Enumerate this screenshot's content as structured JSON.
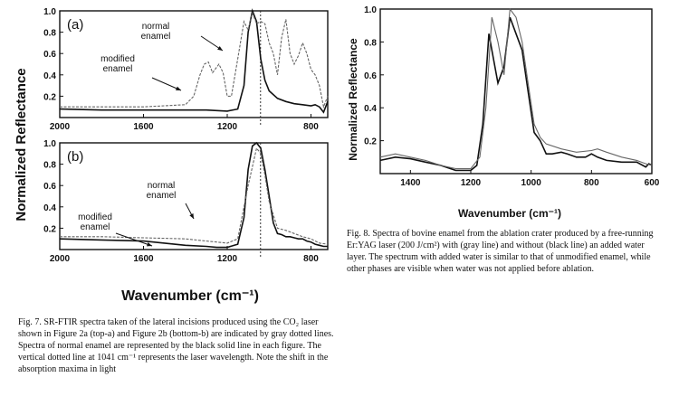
{
  "chart_data": [
    {
      "type": "line",
      "panel_label": "(a)",
      "xlabel": "Wavenumber (cm⁻¹)",
      "ylabel": "Normalized Reflectance",
      "x_ticks": [
        "2000",
        "1600",
        "1200",
        "800"
      ],
      "y_ticks": [
        "0.2",
        "0.4",
        "0.6",
        "0.8",
        "1.0"
      ],
      "xlim": [
        2000,
        720
      ],
      "ylim": [
        0,
        1.0
      ],
      "annotations": [
        {
          "text": [
            "normal",
            "enamel"
          ]
        },
        {
          "text": [
            "modified",
            "enamel"
          ]
        }
      ],
      "vertical_line_x": 1041,
      "series": [
        {
          "style": "black-solid",
          "x": [
            2000,
            1800,
            1600,
            1400,
            1300,
            1200,
            1150,
            1120,
            1100,
            1080,
            1060,
            1040,
            1020,
            1000,
            960,
            920,
            880,
            840,
            800,
            780,
            760,
            740,
            720
          ],
          "y": [
            0.08,
            0.07,
            0.07,
            0.07,
            0.07,
            0.06,
            0.08,
            0.3,
            0.8,
            1.0,
            0.9,
            0.55,
            0.35,
            0.25,
            0.18,
            0.15,
            0.13,
            0.12,
            0.11,
            0.12,
            0.1,
            0.05,
            0.15
          ]
        },
        {
          "style": "gray-dotted",
          "x": [
            2000,
            1800,
            1600,
            1400,
            1360,
            1330,
            1310,
            1290,
            1270,
            1240,
            1220,
            1200,
            1180,
            1150,
            1120,
            1100,
            1080,
            1060,
            1040,
            1020,
            1000,
            980,
            960,
            940,
            920,
            900,
            880,
            860,
            840,
            820,
            800,
            780,
            760,
            740,
            720
          ],
          "y": [
            0.1,
            0.1,
            0.1,
            0.12,
            0.2,
            0.4,
            0.5,
            0.52,
            0.42,
            0.5,
            0.42,
            0.2,
            0.2,
            0.55,
            0.9,
            0.82,
            0.98,
            0.88,
            0.9,
            0.88,
            0.7,
            0.6,
            0.4,
            0.75,
            0.92,
            0.6,
            0.5,
            0.58,
            0.7,
            0.6,
            0.45,
            0.4,
            0.3,
            0.1,
            0.2
          ]
        }
      ]
    },
    {
      "type": "line",
      "panel_label": "(b)",
      "xlabel": "Wavenumber (cm⁻¹)",
      "ylabel": "Normalized Reflectance",
      "x_ticks": [
        "2000",
        "1600",
        "1200",
        "800"
      ],
      "y_ticks": [
        "0.2",
        "0.4",
        "0.6",
        "0.8",
        "1.0"
      ],
      "xlim": [
        2000,
        720
      ],
      "ylim": [
        0,
        1.0
      ],
      "annotations": [
        {
          "text": [
            "normal",
            "enamel"
          ]
        },
        {
          "text": [
            "modified",
            "enamel"
          ]
        }
      ],
      "vertical_line_x": 1041,
      "series": [
        {
          "style": "black-solid",
          "x": [
            2000,
            1800,
            1600,
            1500,
            1400,
            1300,
            1250,
            1200,
            1150,
            1120,
            1100,
            1080,
            1060,
            1040,
            1020,
            1000,
            980,
            960,
            940,
            920,
            900,
            880,
            860,
            840,
            820,
            800,
            780,
            760,
            740,
            720
          ],
          "y": [
            0.1,
            0.09,
            0.08,
            0.06,
            0.04,
            0.03,
            0.02,
            0.02,
            0.05,
            0.3,
            0.75,
            0.97,
            1.0,
            0.95,
            0.75,
            0.5,
            0.25,
            0.15,
            0.14,
            0.12,
            0.12,
            0.11,
            0.1,
            0.1,
            0.08,
            0.07,
            0.05,
            0.04,
            0.03,
            0.03
          ]
        },
        {
          "style": "gray-dotted",
          "x": [
            2000,
            1800,
            1600,
            1400,
            1300,
            1250,
            1200,
            1150,
            1100,
            1060,
            1040,
            1020,
            1000,
            960,
            920,
            880,
            840,
            800,
            760,
            720
          ],
          "y": [
            0.12,
            0.12,
            0.11,
            0.1,
            0.08,
            0.07,
            0.06,
            0.1,
            0.6,
            0.95,
            0.9,
            0.7,
            0.45,
            0.2,
            0.18,
            0.15,
            0.12,
            0.1,
            0.06,
            0.05
          ]
        }
      ]
    },
    {
      "type": "line",
      "xlabel": "Wavenumber (cm⁻¹)",
      "ylabel": "Normalized Reflectance",
      "x_ticks": [
        "1400",
        "1200",
        "1000",
        "800",
        "600"
      ],
      "y_ticks": [
        "0.2",
        "0.4",
        "0.6",
        "0.8",
        "1.0"
      ],
      "xlim": [
        1500,
        600
      ],
      "ylim": [
        0,
        1.0
      ],
      "series": [
        {
          "style": "black-solid",
          "x": [
            1500,
            1450,
            1400,
            1350,
            1300,
            1250,
            1200,
            1180,
            1160,
            1140,
            1130,
            1110,
            1090,
            1070,
            1050,
            1030,
            1010,
            990,
            970,
            950,
            930,
            900,
            880,
            850,
            820,
            800,
            780,
            750,
            700,
            650,
            620,
            610,
            600
          ],
          "y": [
            0.08,
            0.1,
            0.09,
            0.07,
            0.05,
            0.02,
            0.02,
            0.05,
            0.3,
            0.85,
            0.75,
            0.55,
            0.65,
            0.95,
            0.85,
            0.75,
            0.5,
            0.25,
            0.2,
            0.12,
            0.12,
            0.13,
            0.12,
            0.1,
            0.1,
            0.12,
            0.1,
            0.08,
            0.07,
            0.07,
            0.04,
            0.06,
            0.05
          ]
        },
        {
          "style": "gray-solid",
          "x": [
            1500,
            1450,
            1400,
            1350,
            1300,
            1250,
            1200,
            1170,
            1150,
            1130,
            1110,
            1090,
            1070,
            1050,
            1030,
            1010,
            990,
            970,
            950,
            900,
            850,
            800,
            780,
            750,
            700,
            650,
            620,
            600
          ],
          "y": [
            0.1,
            0.12,
            0.1,
            0.08,
            0.05,
            0.03,
            0.03,
            0.1,
            0.4,
            0.95,
            0.8,
            0.6,
            1.0,
            0.95,
            0.8,
            0.55,
            0.3,
            0.22,
            0.18,
            0.15,
            0.13,
            0.14,
            0.15,
            0.13,
            0.1,
            0.08,
            0.06,
            0.05
          ]
        }
      ]
    }
  ],
  "captions": {
    "fig7": "Fig. 7. SR-FTIR spectra taken of the lateral incisions produced using the CO₂ laser shown in Figure 2a (top-a) and Figure 2b (bottom-b) are indicated by gray dotted lines. Spectra of normal enamel are represented by the black solid line in each figure. The vertical dotted line at 1041 cm⁻¹ represents the laser wavelength. Note the shift in the absorption maxima in light",
    "fig8": "Fig. 8. Spectra of bovine enamel from the ablation crater produced by a free-running Er:YAG laser (200 J/cm²) with (gray line) and without (black line) an added water layer. The spectrum with added water is similar to that of unmodified enamel, while other phases are visible when water was not applied before ablation."
  }
}
